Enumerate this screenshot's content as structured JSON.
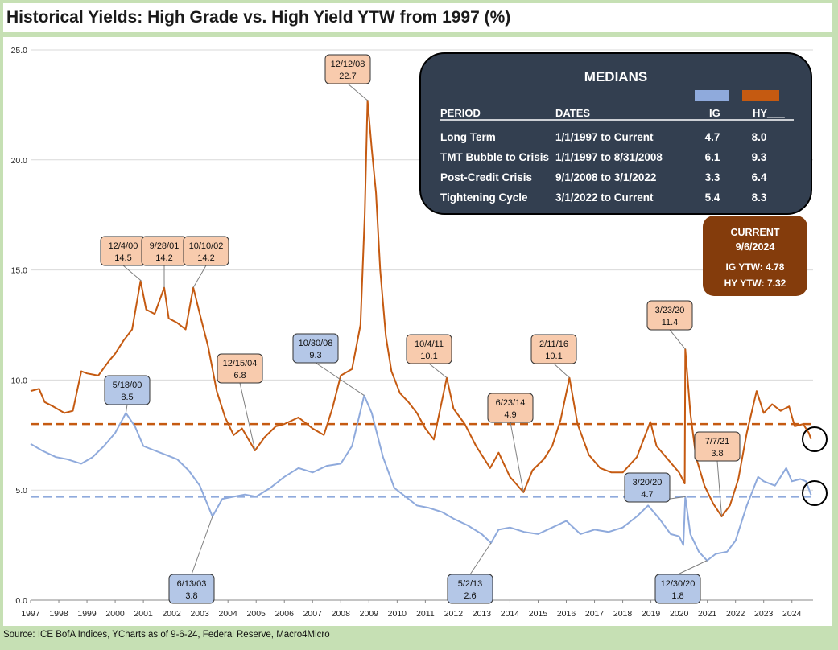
{
  "title": "Historical Yields: High Grade vs. High Yield YTW from 1997 (%)",
  "source": "Source: ICE BofA Indices, YCharts as of 9-6-24, Federal Reserve, Macro4Micro",
  "colors": {
    "ig": "#8faadc",
    "hy": "#c55a11",
    "ig_callout_fill": "#b4c7e7",
    "hy_callout_fill": "#f8cbad",
    "medians_box": "#333f50",
    "current_box": "#843c0c"
  },
  "chart_data": {
    "type": "line",
    "ylim": [
      0,
      25
    ],
    "yticks": [
      "0.0",
      "5.0",
      "10.0",
      "15.0",
      "20.0",
      "25.0"
    ],
    "xlim": [
      1997,
      2024.75
    ],
    "xticks": [
      "1997",
      "1998",
      "1999",
      "2000",
      "2001",
      "2002",
      "2003",
      "2004",
      "2005",
      "2006",
      "2007",
      "2008",
      "2009",
      "2010",
      "2011",
      "2012",
      "2013",
      "2014",
      "2015",
      "2016",
      "2017",
      "2018",
      "2019",
      "2020",
      "2021",
      "2022",
      "2023",
      "2024"
    ],
    "series": [
      {
        "key": "hy",
        "points": [
          [
            1997.0,
            9.5
          ],
          [
            1997.3,
            9.6
          ],
          [
            1997.5,
            9.0
          ],
          [
            1997.8,
            8.8
          ],
          [
            1998.2,
            8.5
          ],
          [
            1998.5,
            8.6
          ],
          [
            1998.8,
            10.4
          ],
          [
            1999.0,
            10.3
          ],
          [
            1999.4,
            10.2
          ],
          [
            1999.8,
            10.9
          ],
          [
            2000.0,
            11.2
          ],
          [
            2000.3,
            11.8
          ],
          [
            2000.6,
            12.3
          ],
          [
            2000.9,
            14.5
          ],
          [
            2001.1,
            13.2
          ],
          [
            2001.4,
            13.0
          ],
          [
            2001.74,
            14.2
          ],
          [
            2001.9,
            12.8
          ],
          [
            2002.2,
            12.6
          ],
          [
            2002.5,
            12.3
          ],
          [
            2002.77,
            14.2
          ],
          [
            2003.0,
            13.0
          ],
          [
            2003.3,
            11.5
          ],
          [
            2003.6,
            9.5
          ],
          [
            2003.9,
            8.3
          ],
          [
            2004.2,
            7.5
          ],
          [
            2004.5,
            7.8
          ],
          [
            2004.96,
            6.8
          ],
          [
            2005.3,
            7.4
          ],
          [
            2005.7,
            7.9
          ],
          [
            2006.0,
            8.0
          ],
          [
            2006.5,
            8.3
          ],
          [
            2007.0,
            7.8
          ],
          [
            2007.4,
            7.5
          ],
          [
            2007.7,
            8.7
          ],
          [
            2008.0,
            10.2
          ],
          [
            2008.4,
            10.5
          ],
          [
            2008.7,
            12.5
          ],
          [
            2008.85,
            17.5
          ],
          [
            2008.95,
            22.7
          ],
          [
            2009.1,
            20.5
          ],
          [
            2009.25,
            18.5
          ],
          [
            2009.4,
            15.0
          ],
          [
            2009.6,
            12.0
          ],
          [
            2009.8,
            10.4
          ],
          [
            2010.1,
            9.4
          ],
          [
            2010.4,
            9.0
          ],
          [
            2010.7,
            8.5
          ],
          [
            2011.0,
            7.8
          ],
          [
            2011.3,
            7.3
          ],
          [
            2011.76,
            10.1
          ],
          [
            2012.0,
            8.7
          ],
          [
            2012.4,
            8.0
          ],
          [
            2012.8,
            7.0
          ],
          [
            2013.3,
            6.0
          ],
          [
            2013.6,
            6.7
          ],
          [
            2014.0,
            5.6
          ],
          [
            2014.48,
            4.9
          ],
          [
            2014.8,
            5.9
          ],
          [
            2015.2,
            6.4
          ],
          [
            2015.5,
            7.0
          ],
          [
            2015.8,
            8.2
          ],
          [
            2016.11,
            10.1
          ],
          [
            2016.4,
            8.0
          ],
          [
            2016.8,
            6.6
          ],
          [
            2017.2,
            6.0
          ],
          [
            2017.6,
            5.8
          ],
          [
            2018.0,
            5.8
          ],
          [
            2018.5,
            6.5
          ],
          [
            2018.98,
            8.1
          ],
          [
            2019.2,
            7.0
          ],
          [
            2019.6,
            6.4
          ],
          [
            2020.0,
            5.8
          ],
          [
            2020.2,
            5.3
          ],
          [
            2020.22,
            11.4
          ],
          [
            2020.4,
            8.5
          ],
          [
            2020.6,
            6.5
          ],
          [
            2020.9,
            5.2
          ],
          [
            2021.2,
            4.4
          ],
          [
            2021.51,
            3.8
          ],
          [
            2021.8,
            4.3
          ],
          [
            2022.1,
            5.5
          ],
          [
            2022.4,
            7.6
          ],
          [
            2022.75,
            9.5
          ],
          [
            2023.0,
            8.5
          ],
          [
            2023.3,
            8.9
          ],
          [
            2023.6,
            8.6
          ],
          [
            2023.9,
            8.8
          ],
          [
            2024.1,
            7.9
          ],
          [
            2024.4,
            8.0
          ],
          [
            2024.6,
            7.6
          ],
          [
            2024.68,
            7.32
          ]
        ]
      },
      {
        "key": "ig",
        "points": [
          [
            1997.0,
            7.1
          ],
          [
            1997.4,
            6.8
          ],
          [
            1997.9,
            6.5
          ],
          [
            1998.3,
            6.4
          ],
          [
            1998.8,
            6.2
          ],
          [
            1999.2,
            6.5
          ],
          [
            1999.6,
            7.0
          ],
          [
            2000.0,
            7.6
          ],
          [
            2000.38,
            8.5
          ],
          [
            2000.7,
            7.9
          ],
          [
            2001.0,
            7.0
          ],
          [
            2001.4,
            6.8
          ],
          [
            2001.8,
            6.6
          ],
          [
            2002.2,
            6.4
          ],
          [
            2002.6,
            5.9
          ],
          [
            2003.0,
            5.2
          ],
          [
            2003.45,
            3.8
          ],
          [
            2003.8,
            4.6
          ],
          [
            2004.2,
            4.7
          ],
          [
            2004.6,
            4.8
          ],
          [
            2005.0,
            4.7
          ],
          [
            2005.5,
            5.1
          ],
          [
            2006.0,
            5.6
          ],
          [
            2006.5,
            6.0
          ],
          [
            2007.0,
            5.8
          ],
          [
            2007.5,
            6.1
          ],
          [
            2008.0,
            6.2
          ],
          [
            2008.4,
            7.0
          ],
          [
            2008.83,
            9.3
          ],
          [
            2009.1,
            8.5
          ],
          [
            2009.5,
            6.5
          ],
          [
            2009.9,
            5.1
          ],
          [
            2010.3,
            4.7
          ],
          [
            2010.7,
            4.3
          ],
          [
            2011.1,
            4.2
          ],
          [
            2011.6,
            4.0
          ],
          [
            2012.0,
            3.7
          ],
          [
            2012.5,
            3.4
          ],
          [
            2013.0,
            3.0
          ],
          [
            2013.33,
            2.6
          ],
          [
            2013.6,
            3.2
          ],
          [
            2014.0,
            3.3
          ],
          [
            2014.5,
            3.1
          ],
          [
            2015.0,
            3.0
          ],
          [
            2015.5,
            3.3
          ],
          [
            2016.0,
            3.6
          ],
          [
            2016.5,
            3.0
          ],
          [
            2017.0,
            3.2
          ],
          [
            2017.5,
            3.1
          ],
          [
            2018.0,
            3.3
          ],
          [
            2018.5,
            3.8
          ],
          [
            2018.9,
            4.3
          ],
          [
            2019.3,
            3.7
          ],
          [
            2019.7,
            3.0
          ],
          [
            2020.0,
            2.9
          ],
          [
            2020.15,
            2.5
          ],
          [
            2020.22,
            4.7
          ],
          [
            2020.4,
            3.0
          ],
          [
            2020.7,
            2.2
          ],
          [
            2020.99,
            1.8
          ],
          [
            2021.3,
            2.1
          ],
          [
            2021.7,
            2.2
          ],
          [
            2022.0,
            2.7
          ],
          [
            2022.4,
            4.3
          ],
          [
            2022.8,
            5.6
          ],
          [
            2023.0,
            5.4
          ],
          [
            2023.4,
            5.2
          ],
          [
            2023.8,
            6.0
          ],
          [
            2024.0,
            5.4
          ],
          [
            2024.3,
            5.5
          ],
          [
            2024.5,
            5.4
          ],
          [
            2024.68,
            4.78
          ]
        ]
      }
    ],
    "median_lines": [
      {
        "key": "hy",
        "value": 8.0
      },
      {
        "key": "ig",
        "value": 4.7
      }
    ],
    "annotations": [
      {
        "series": "hy",
        "date": "12/4/00",
        "value": "14.5",
        "x": 2000.93,
        "y": 14.5
      },
      {
        "series": "hy",
        "date": "9/28/01",
        "value": "14.2",
        "x": 2001.74,
        "y": 14.2
      },
      {
        "series": "hy",
        "date": "10/10/02",
        "value": "14.2",
        "x": 2002.77,
        "y": 14.2
      },
      {
        "series": "hy",
        "date": "12/15/04",
        "value": "6.8",
        "x": 2004.96,
        "y": 6.8
      },
      {
        "series": "hy",
        "date": "12/12/08",
        "value": "22.7",
        "x": 2008.95,
        "y": 22.7
      },
      {
        "series": "hy",
        "date": "10/4/11",
        "value": "10.1",
        "x": 2011.76,
        "y": 10.1
      },
      {
        "series": "hy",
        "date": "6/23/14",
        "value": "4.9",
        "x": 2014.48,
        "y": 4.9
      },
      {
        "series": "hy",
        "date": "2/11/16",
        "value": "10.1",
        "x": 2016.11,
        "y": 10.1
      },
      {
        "series": "hy",
        "date": "3/23/20",
        "value": "11.4",
        "x": 2020.22,
        "y": 11.4
      },
      {
        "series": "hy",
        "date": "7/7/21",
        "value": "3.8",
        "x": 2021.51,
        "y": 3.8
      },
      {
        "series": "ig",
        "date": "5/18/00",
        "value": "8.5",
        "x": 2000.38,
        "y": 8.5
      },
      {
        "series": "ig",
        "date": "6/13/03",
        "value": "3.8",
        "x": 2003.45,
        "y": 3.8
      },
      {
        "series": "ig",
        "date": "10/30/08",
        "value": "9.3",
        "x": 2008.83,
        "y": 9.3
      },
      {
        "series": "ig",
        "date": "5/2/13",
        "value": "2.6",
        "x": 2013.33,
        "y": 2.6
      },
      {
        "series": "ig",
        "date": "3/20/20",
        "value": "4.7",
        "x": 2020.22,
        "y": 4.7
      },
      {
        "series": "ig",
        "date": "12/30/20",
        "value": "1.8",
        "x": 2020.99,
        "y": 1.8
      }
    ]
  },
  "medians": {
    "title": "MEDIANS",
    "headers": {
      "period": "PERIOD",
      "dates": "DATES",
      "ig": "IG",
      "hy": "HY___"
    },
    "rows": [
      {
        "period": "Long Term",
        "dates": "1/1/1997 to Current",
        "ig": "4.7",
        "hy": "8.0"
      },
      {
        "period": "TMT Bubble to Crisis",
        "dates": "1/1/1997 to 8/31/2008",
        "ig": "6.1",
        "hy": "9.3"
      },
      {
        "period": "Post-Credit Crisis",
        "dates": "9/1/2008 to 3/1/2022",
        "ig": "3.3",
        "hy": "6.4"
      },
      {
        "period": "Tightening Cycle",
        "dates": "3/1/2022 to Current",
        "ig": "5.4",
        "hy": "8.3"
      }
    ]
  },
  "current": {
    "title": "CURRENT",
    "date": "9/6/2024",
    "ig_line": "IG YTW:  4.78",
    "hy_line": "HY YTW:  7.32"
  }
}
